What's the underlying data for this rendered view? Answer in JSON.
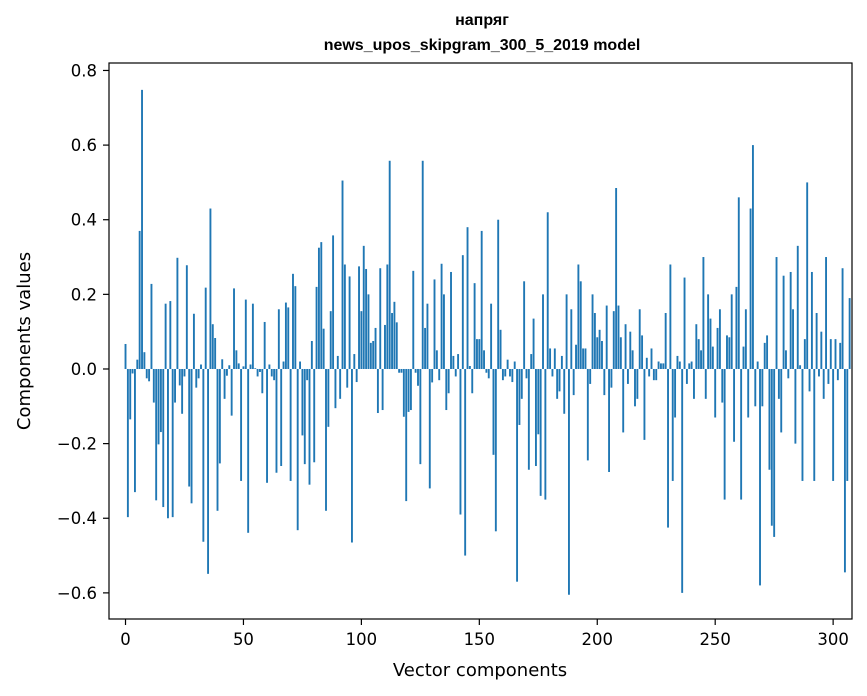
{
  "chart_data": {
    "type": "bar",
    "title": "напряг",
    "subtitle": "news_upos_skipgram_300_5_2019 model",
    "xlabel": "Vector components",
    "ylabel": "Components values",
    "xlim": [
      -7,
      308
    ],
    "ylim": [
      -0.67,
      0.82
    ],
    "xticks": [
      0,
      50,
      100,
      150,
      200,
      250,
      300
    ],
    "yticks": [
      -0.6,
      -0.4,
      -0.2,
      0.0,
      0.2,
      0.4,
      0.6,
      0.8
    ],
    "ytick_labels": [
      "−0.6",
      "−0.4",
      "−0.2",
      "0.0",
      "0.2",
      "0.4",
      "0.6",
      "0.8"
    ],
    "bar_color": "#1f77b4",
    "values": [
      0.067,
      -0.397,
      -0.135,
      -0.012,
      -0.33,
      0.025,
      0.37,
      0.748,
      0.045,
      -0.025,
      -0.033,
      0.228,
      -0.09,
      -0.352,
      -0.202,
      -0.169,
      -0.37,
      0.175,
      -0.4,
      0.182,
      -0.397,
      -0.09,
      0.298,
      -0.044,
      -0.12,
      -0.02,
      0.278,
      -0.315,
      -0.36,
      0.148,
      -0.05,
      -0.025,
      0.012,
      -0.463,
      0.218,
      -0.549,
      0.43,
      0.12,
      0.083,
      -0.38,
      -0.253,
      0.026,
      -0.08,
      -0.018,
      0.01,
      -0.125,
      0.216,
      0.05,
      0.015,
      -0.3,
      0.007,
      0.186,
      -0.439,
      0.012,
      0.175,
      0.002,
      -0.02,
      -0.008,
      -0.065,
      0.126,
      -0.305,
      0.012,
      -0.02,
      -0.03,
      -0.278,
      0.16,
      -0.26,
      0.02,
      0.178,
      0.165,
      -0.3,
      0.255,
      0.222,
      -0.432,
      0.02,
      -0.178,
      -0.255,
      -0.03,
      -0.31,
      0.075,
      -0.25,
      0.22,
      0.325,
      0.34,
      0.108,
      -0.38,
      -0.155,
      0.155,
      0.358,
      -0.105,
      0.035,
      -0.08,
      0.505,
      0.28,
      -0.05,
      0.248,
      -0.465,
      0.04,
      -0.035,
      0.275,
      0.155,
      0.33,
      0.268,
      0.2,
      0.07,
      0.075,
      0.11,
      -0.118,
      0.27,
      -0.11,
      0.118,
      0.28,
      0.558,
      0.15,
      0.18,
      0.125,
      -0.01,
      -0.01,
      -0.128,
      -0.354,
      -0.115,
      -0.11,
      0.263,
      -0.01,
      -0.045,
      -0.255,
      0.558,
      0.11,
      0.175,
      -0.32,
      -0.036,
      0.24,
      0.05,
      -0.03,
      0.282,
      0.2,
      -0.11,
      -0.065,
      0.26,
      0.035,
      -0.02,
      0.04,
      -0.39,
      0.305,
      -0.5,
      0.38,
      0.008,
      -0.065,
      0.23,
      0.08,
      0.08,
      0.37,
      0.05,
      -0.01,
      -0.025,
      0.175,
      -0.23,
      -0.435,
      0.4,
      0.105,
      -0.03,
      -0.02,
      0.025,
      -0.02,
      -0.035,
      0.02,
      -0.57,
      -0.15,
      -0.08,
      0.235,
      -0.025,
      -0.27,
      0.04,
      0.135,
      -0.26,
      -0.175,
      -0.34,
      0.2,
      -0.35,
      0.42,
      0.055,
      -0.02,
      0.055,
      -0.08,
      -0.06,
      0.035,
      -0.12,
      0.2,
      -0.605,
      0.16,
      -0.07,
      0.065,
      0.28,
      0.235,
      0.055,
      0.055,
      -0.245,
      -0.04,
      0.2,
      0.15,
      0.085,
      0.105,
      0.075,
      -0.07,
      0.17,
      -0.276,
      -0.05,
      0.155,
      0.485,
      0.17,
      0.085,
      -0.17,
      0.12,
      -0.04,
      0.1,
      0.05,
      -0.1,
      -0.08,
      0.16,
      0.09,
      -0.19,
      0.03,
      -0.02,
      0.055,
      -0.03,
      -0.03,
      0.02,
      0.015,
      0.015,
      0.15,
      -0.425,
      0.28,
      -0.3,
      -0.13,
      0.035,
      0.02,
      -0.6,
      0.245,
      -0.04,
      0.015,
      0.02,
      -0.08,
      0.12,
      0.08,
      0.05,
      0.3,
      -0.08,
      0.2,
      0.135,
      0.06,
      -0.13,
      0.11,
      0.16,
      -0.09,
      -0.35,
      0.09,
      0.085,
      0.2,
      -0.195,
      0.22,
      0.46,
      -0.35,
      0.06,
      0.16,
      -0.13,
      0.43,
      0.6,
      -0.1,
      0.02,
      -0.58,
      -0.1,
      0.07,
      0.09,
      -0.27,
      -0.42,
      -0.45,
      0.3,
      -0.08,
      -0.17,
      0.25,
      0.05,
      -0.025,
      0.26,
      0.16,
      -0.2,
      0.33,
      0.01,
      -0.3,
      0.08,
      0.5,
      -0.06,
      0.26,
      -0.3,
      0.15,
      -0.02,
      0.1,
      -0.08,
      0.3,
      -0.04,
      0.08,
      -0.3,
      0.08,
      -0.03,
      0.07,
      0.27,
      -0.545,
      -0.3,
      0.19
    ]
  }
}
